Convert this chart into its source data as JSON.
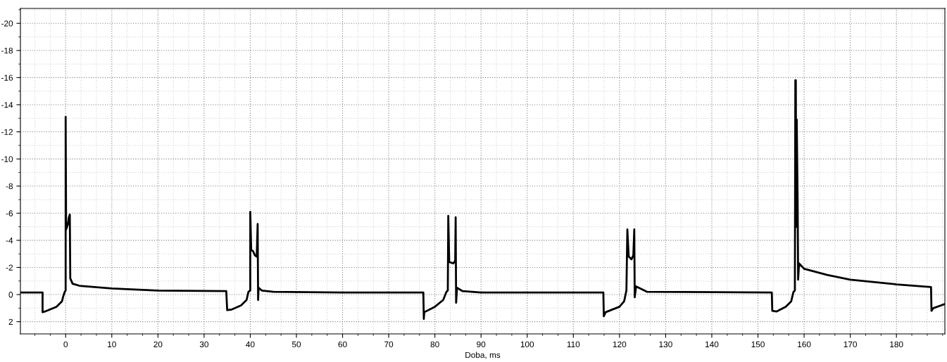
{
  "chart_data": {
    "type": "line",
    "xlabel": "Doba, ms",
    "series": [
      {
        "color": "#000000",
        "x": [
          -9.8,
          -5,
          -5,
          -4.5,
          -2,
          -0.8,
          -0.5,
          -0.2,
          0,
          0,
          0.1,
          0.5,
          0.7,
          0.9,
          1.0,
          1.5,
          3,
          10,
          20,
          34.8,
          35,
          36,
          38,
          39.2,
          39.6,
          40,
          40,
          40.2,
          40.6,
          41,
          41.4,
          41.6,
          41.7,
          41.8,
          42.5,
          45,
          60,
          77.5,
          77.6,
          77.7,
          80,
          81.8,
          82.5,
          82.8,
          82.9,
          83.1,
          84,
          84.4,
          84.5,
          84.6,
          84.8,
          86,
          90,
          116.5,
          116.6,
          117,
          120,
          121,
          121.5,
          121.7,
          122,
          122.6,
          123,
          123.2,
          123.3,
          123.6,
          126,
          153,
          153.1,
          154,
          156,
          157.2,
          157.7,
          158,
          158.1,
          158.2,
          158.3,
          158.4,
          158.6,
          158.7,
          158.9,
          160,
          165,
          170,
          180,
          187.5,
          187.6,
          188,
          190.5
        ],
        "values": [
          -0.15,
          -0.15,
          1.3,
          1.25,
          0.9,
          0.5,
          0.1,
          -0.2,
          -0.3,
          -13.1,
          -4.8,
          -5.2,
          -5.7,
          -5.9,
          -1.2,
          -0.8,
          -0.65,
          -0.45,
          -0.3,
          -0.25,
          1.15,
          1.1,
          0.8,
          0.4,
          -0.2,
          -0.3,
          -6.1,
          -3.3,
          -3.2,
          -2.9,
          -2.8,
          -5.2,
          0.4,
          -0.5,
          -0.3,
          -0.2,
          -0.15,
          -0.15,
          1.8,
          1.3,
          0.9,
          0.4,
          -0.2,
          -0.3,
          -5.8,
          -2.4,
          -2.3,
          -2.5,
          -5.7,
          0.6,
          -0.5,
          -0.25,
          -0.15,
          -0.15,
          1.6,
          1.3,
          0.9,
          0.5,
          -0.3,
          -4.8,
          -2.8,
          -2.6,
          -2.9,
          -4.8,
          0.2,
          -0.6,
          -0.2,
          -0.15,
          1.2,
          1.25,
          0.9,
          0.5,
          -0.2,
          -0.3,
          -15.8,
          -15.8,
          -5,
          -12.9,
          -6.7,
          -1.1,
          -2.3,
          -1.9,
          -1.45,
          -1.1,
          -0.75,
          -0.55,
          1.2,
          1.0,
          0.7
        ]
      }
    ],
    "xlim": [
      -9.8,
      190.5
    ],
    "ylim": [
      2.9,
      -21.1
    ],
    "xticks": [
      0,
      10,
      20,
      30,
      40,
      50,
      60,
      70,
      80,
      90,
      100,
      110,
      120,
      130,
      140,
      150,
      160,
      170,
      180
    ],
    "yticks": [
      -20,
      -18,
      -16,
      -14,
      -12,
      -10,
      -8,
      -6,
      -4,
      -2,
      0,
      2
    ],
    "grid": true,
    "line_style": "solid",
    "marker": "none"
  }
}
